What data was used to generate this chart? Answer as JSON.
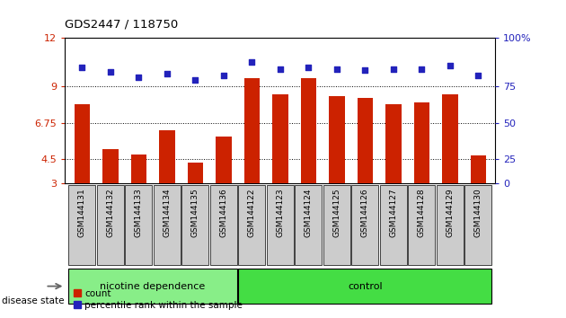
{
  "title": "GDS2447 / 118750",
  "samples": [
    "GSM144131",
    "GSM144132",
    "GSM144133",
    "GSM144134",
    "GSM144135",
    "GSM144136",
    "GSM144122",
    "GSM144123",
    "GSM144124",
    "GSM144125",
    "GSM144126",
    "GSM144127",
    "GSM144128",
    "GSM144129",
    "GSM144130"
  ],
  "bar_values": [
    7.9,
    5.1,
    4.8,
    6.3,
    4.3,
    5.9,
    9.5,
    8.5,
    9.5,
    8.4,
    8.3,
    7.9,
    8.0,
    8.5,
    4.7
  ],
  "dot_values": [
    10.2,
    9.9,
    9.6,
    9.8,
    9.4,
    9.7,
    10.5,
    10.1,
    10.2,
    10.1,
    10.0,
    10.1,
    10.1,
    10.3,
    9.7
  ],
  "groups": [
    {
      "label": "nicotine dependence",
      "start": 0,
      "end": 5,
      "color": "#88ee88"
    },
    {
      "label": "control",
      "start": 6,
      "end": 14,
      "color": "#44dd44"
    }
  ],
  "ymin": 3,
  "ymax": 12,
  "yticks_left": [
    3,
    4.5,
    6.75,
    9,
    12
  ],
  "ytick_labels_left": [
    "3",
    "4.5",
    "6.75",
    "9",
    "12"
  ],
  "ytick_labels_right": [
    "0",
    "25",
    "50",
    "75",
    "100%"
  ],
  "bar_color": "#cc2200",
  "dot_color": "#2222bb",
  "legend_items": [
    "count",
    "percentile rank within the sample"
  ],
  "disease_state_label": "disease state",
  "bar_width": 0.55,
  "gray_box_color": "#cccccc",
  "group_gap_color": "#ffffff"
}
